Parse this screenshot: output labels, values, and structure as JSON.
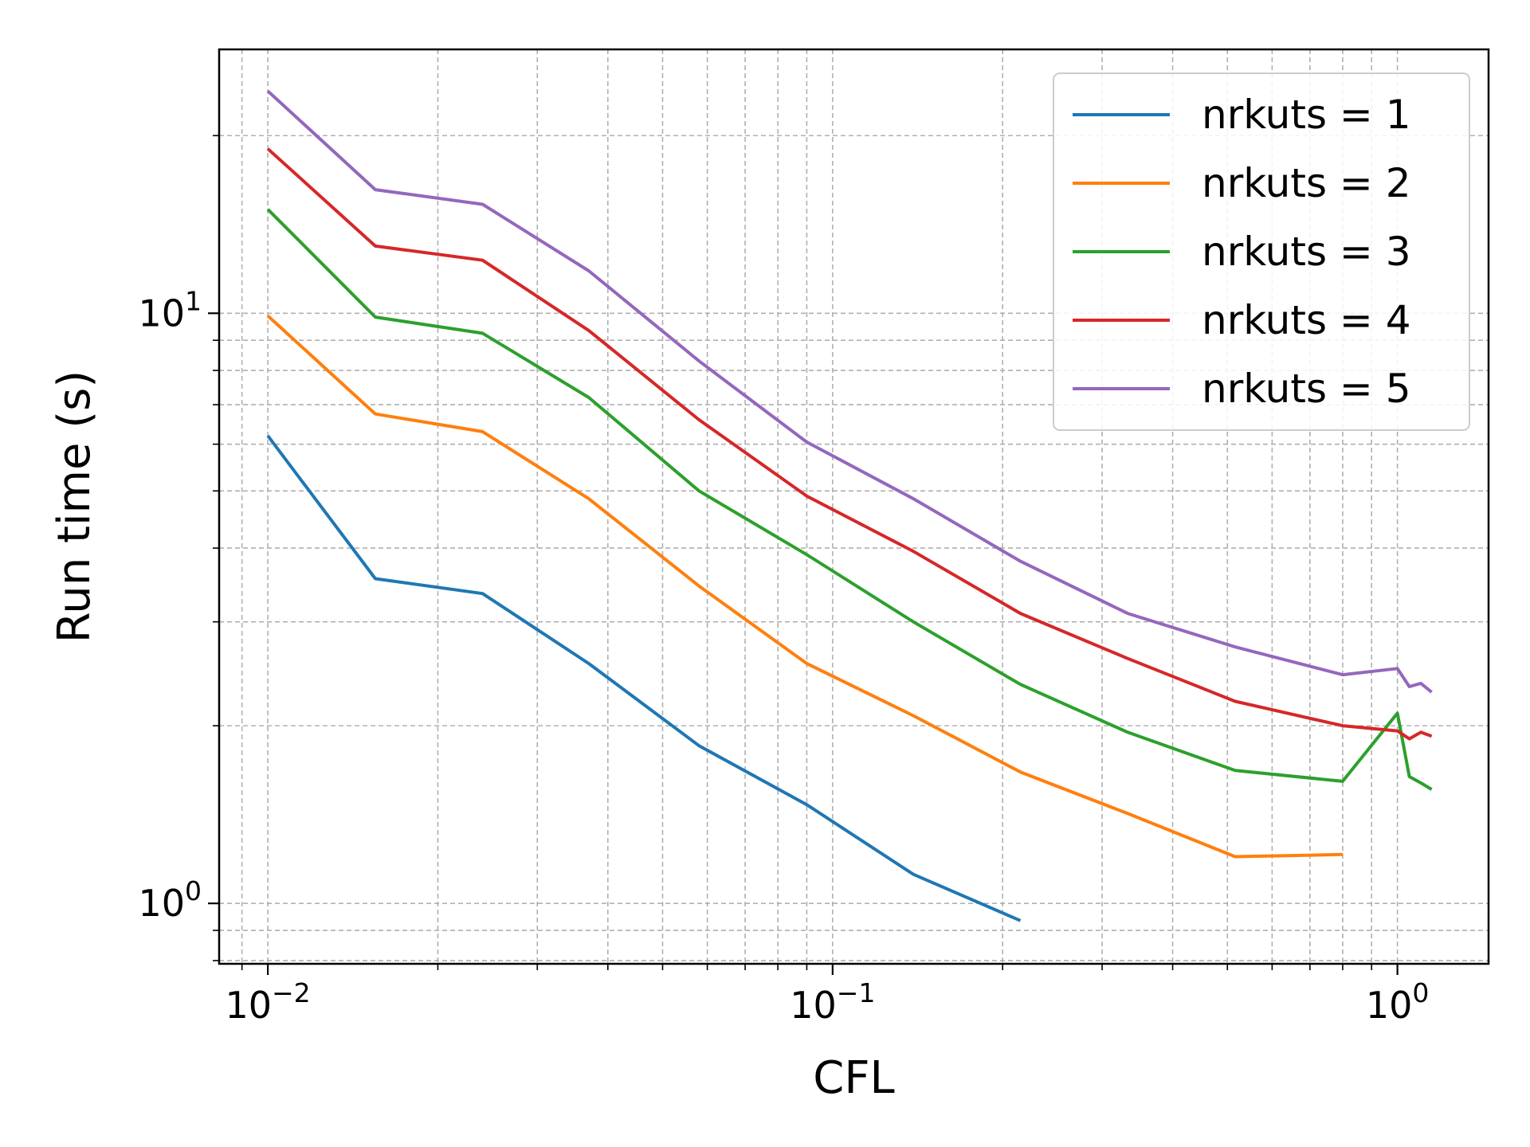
{
  "chart_data": {
    "type": "line",
    "title": "",
    "xlabel": "CFL",
    "ylabel": "Run time (s)",
    "xscale": "log",
    "yscale": "log",
    "xlim": [
      0.0082,
      1.45
    ],
    "ylim": [
      0.79,
      28
    ],
    "grid": true,
    "grid_which": "both",
    "legend_position": "top-right",
    "x_tick_labels": [
      {
        "value": 0.01,
        "base": "10",
        "exp": "−2"
      },
      {
        "value": 0.1,
        "base": "10",
        "exp": "−1"
      },
      {
        "value": 1,
        "base": "10",
        "exp": "0"
      }
    ],
    "y_tick_labels": [
      {
        "value": 1,
        "base": "10",
        "exp": "0"
      },
      {
        "value": 10,
        "base": "10",
        "exp": "1"
      }
    ],
    "series": [
      {
        "name": "nrkuts = 1",
        "color": "#1f77b4",
        "x": [
          0.01,
          0.0155,
          0.024,
          0.037,
          0.058,
          0.09,
          0.139,
          0.215
        ],
        "y": [
          6.2,
          3.55,
          3.35,
          2.55,
          1.85,
          1.47,
          1.12,
          0.935
        ]
      },
      {
        "name": "nrkuts = 2",
        "color": "#ff7f0e",
        "x": [
          0.01,
          0.0155,
          0.024,
          0.037,
          0.058,
          0.09,
          0.139,
          0.215,
          0.333,
          0.516,
          0.8
        ],
        "y": [
          9.9,
          6.75,
          6.3,
          4.85,
          3.45,
          2.55,
          2.08,
          1.67,
          1.42,
          1.2,
          1.21
        ]
      },
      {
        "name": "nrkuts = 3",
        "color": "#2ca02c",
        "x": [
          0.01,
          0.0155,
          0.024,
          0.037,
          0.058,
          0.09,
          0.139,
          0.215,
          0.333,
          0.516,
          0.8,
          1.0,
          1.05,
          1.1,
          1.15
        ],
        "y": [
          15.0,
          9.85,
          9.25,
          7.2,
          5.0,
          3.9,
          3.0,
          2.35,
          1.95,
          1.68,
          1.61,
          2.1,
          1.64,
          1.6,
          1.56
        ]
      },
      {
        "name": "nrkuts = 4",
        "color": "#d62728",
        "x": [
          0.01,
          0.0155,
          0.024,
          0.037,
          0.058,
          0.09,
          0.139,
          0.215,
          0.333,
          0.516,
          0.8,
          1.0,
          1.05,
          1.1,
          1.15
        ],
        "y": [
          19.0,
          13.0,
          12.3,
          9.35,
          6.6,
          4.9,
          3.95,
          3.1,
          2.6,
          2.2,
          2.0,
          1.96,
          1.9,
          1.95,
          1.92
        ]
      },
      {
        "name": "nrkuts = 5",
        "color": "#9467bd",
        "x": [
          0.01,
          0.0155,
          0.024,
          0.037,
          0.058,
          0.09,
          0.139,
          0.215,
          0.333,
          0.516,
          0.8,
          1.0,
          1.05,
          1.1,
          1.15
        ],
        "y": [
          23.8,
          16.2,
          15.3,
          11.8,
          8.3,
          6.05,
          4.85,
          3.8,
          3.1,
          2.72,
          2.44,
          2.5,
          2.33,
          2.36,
          2.28
        ]
      }
    ]
  }
}
